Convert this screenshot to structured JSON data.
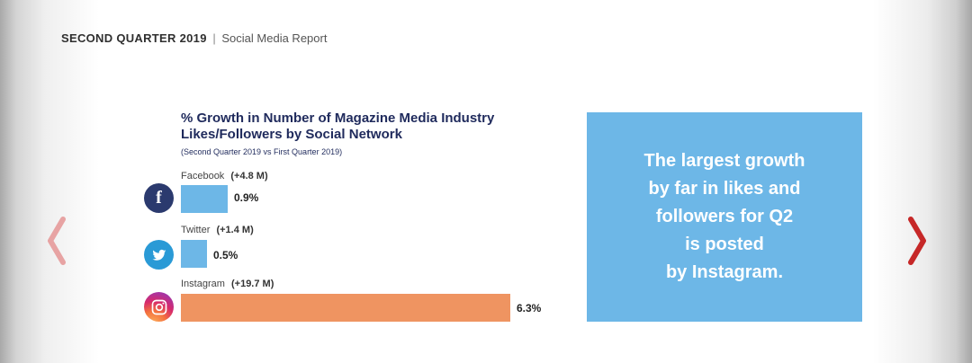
{
  "header": {
    "title": "SECOND QUARTER 2019",
    "separator": "|",
    "subtitle": "Social Media Report"
  },
  "callout": {
    "lines": [
      "The largest growth",
      "by far in likes and",
      "followers for Q2",
      "is posted",
      "by Instagram."
    ]
  },
  "icons": {
    "facebook": "facebook-icon",
    "twitter": "twitter-icon",
    "instagram": "instagram-icon",
    "prev": "chevron-left-icon",
    "next": "chevron-right-icon"
  },
  "colors": {
    "bar_default": "#6db7e7",
    "bar_highlight": "#ef9461",
    "callout_bg": "#6db7e7",
    "title": "#1f2a5c",
    "nav_prev": "#e7a3a3",
    "nav_next": "#c62828"
  },
  "chart_data": {
    "type": "bar",
    "orientation": "horizontal",
    "title": "% Growth in Number of Magazine Media Industry Likes/Followers by Social Network",
    "subtitle": "(Second Quarter 2019 vs First Quarter 2019)",
    "categories": [
      "Facebook",
      "Twitter",
      "Instagram"
    ],
    "deltas": [
      "(+4.8 M)",
      "(+1.4 M)",
      "(+19.7 M)"
    ],
    "values": [
      0.9,
      0.5,
      6.3
    ],
    "value_labels": [
      "0.9%",
      "0.5%",
      "6.3%"
    ],
    "unit": "%",
    "xlim": [
      0,
      6.3
    ],
    "grid": false,
    "legend": "none"
  }
}
